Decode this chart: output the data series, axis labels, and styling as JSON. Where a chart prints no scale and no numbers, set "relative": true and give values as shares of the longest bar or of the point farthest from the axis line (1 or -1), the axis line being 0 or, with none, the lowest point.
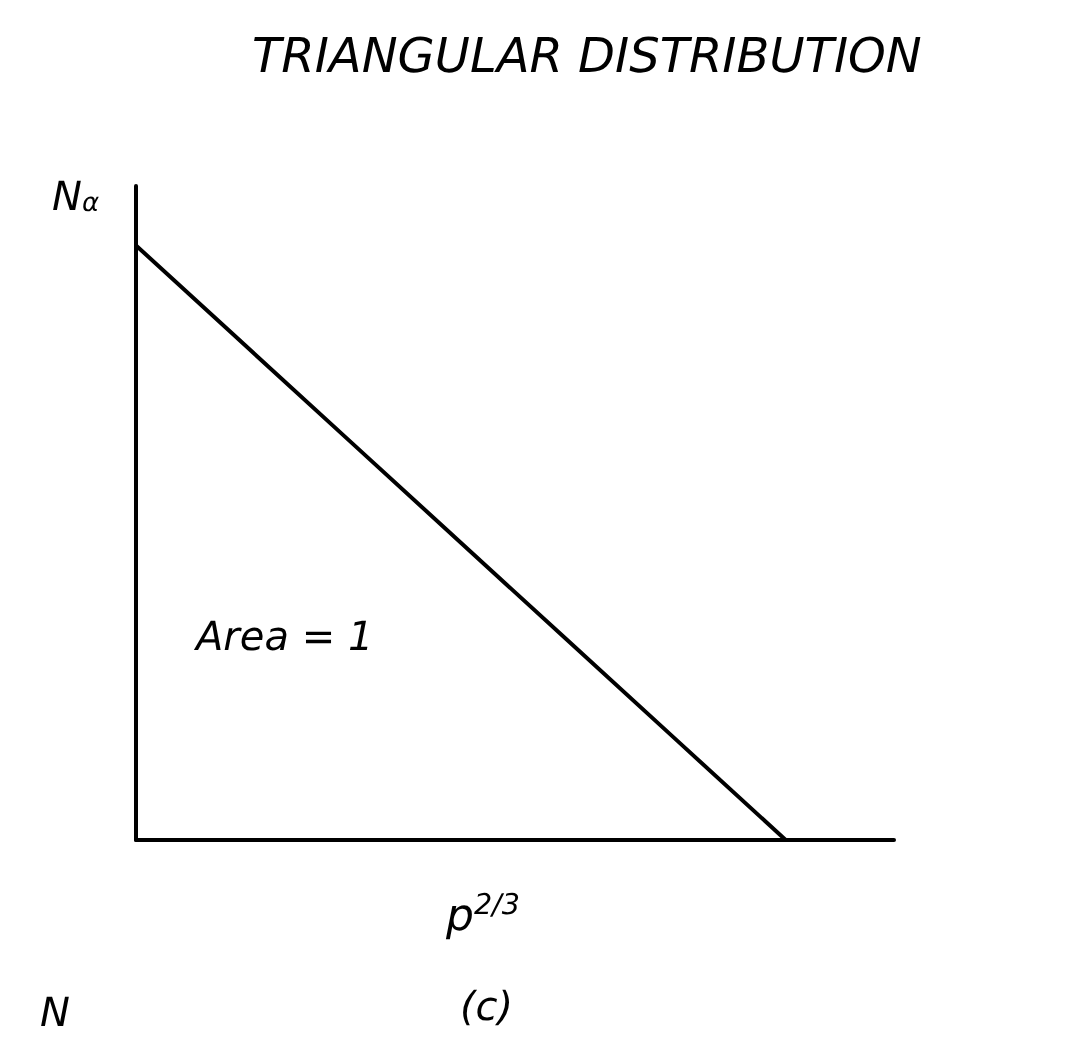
{
  "chart_data": {
    "type": "line",
    "title": "TRIANGULAR DISTRIBUTION",
    "xlabel": "p$^{2/3}$",
    "ylabel": "N$_{α}$",
    "relative": true,
    "categories": [
      null,
      null,
      null,
      null,
      null,
      null,
      null,
      null
    ],
    "series": [
      {
        "color": "#000000",
        "values": [
          1,
          0.8333,
          0.6667,
          0.5,
          0.3333,
          0.1667,
          0,
          null
        ]
      }
    ],
    "annotations": [
      "Area = 1",
      "(c)",
      "N"
    ],
    "grid": false,
    "marker": "none",
    "line_style": "solid"
  }
}
